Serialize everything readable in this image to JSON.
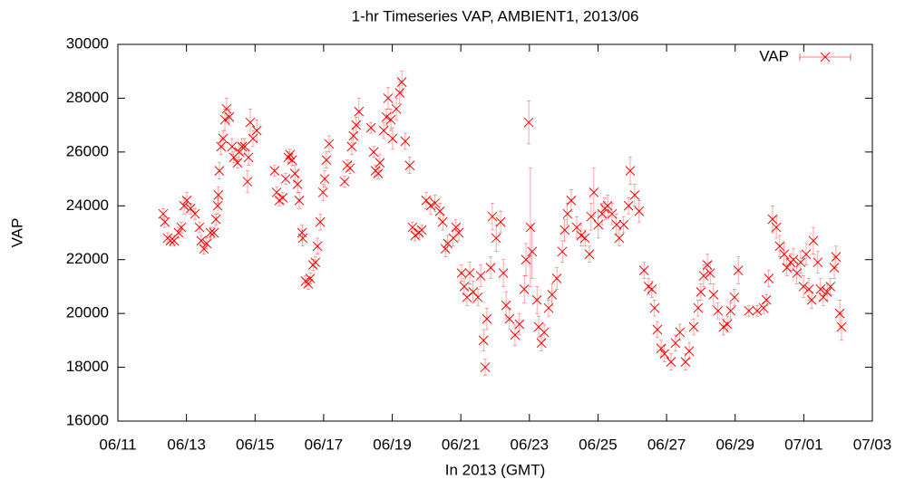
{
  "chart_data": {
    "type": "scatter",
    "title": "1-hr Timeseries VAP, AMBIENT1, 2013/06",
    "xlabel": "In 2013 (GMT)",
    "ylabel": "VAP",
    "xlim": [
      11,
      33
    ],
    "ylim": [
      16000,
      30000
    ],
    "xticks": [
      {
        "value": 11,
        "label": "06/11"
      },
      {
        "value": 13,
        "label": "06/13"
      },
      {
        "value": 15,
        "label": "06/15"
      },
      {
        "value": 17,
        "label": "06/17"
      },
      {
        "value": 19,
        "label": "06/19"
      },
      {
        "value": 21,
        "label": "06/21"
      },
      {
        "value": 23,
        "label": "06/23"
      },
      {
        "value": 25,
        "label": "06/25"
      },
      {
        "value": 27,
        "label": "06/27"
      },
      {
        "value": 29,
        "label": "06/29"
      },
      {
        "value": 31,
        "label": "07/01"
      },
      {
        "value": 33,
        "label": "07/03"
      }
    ],
    "yticks": [
      16000,
      18000,
      20000,
      22000,
      24000,
      26000,
      28000,
      30000
    ],
    "legend": "top-right",
    "x": [
      12.32,
      12.37,
      12.45,
      12.53,
      12.64,
      12.77,
      12.85,
      12.93,
      13.01,
      13.12,
      13.25,
      13.38,
      13.43,
      13.51,
      13.59,
      13.7,
      13.8,
      13.86,
      13.91,
      13.93,
      13.96,
      14.01,
      14.07,
      14.12,
      14.17,
      14.25,
      14.33,
      14.38,
      14.49,
      14.54,
      14.62,
      14.7,
      14.78,
      14.81,
      14.86,
      14.94,
      15.05,
      15.57,
      15.63,
      15.71,
      15.81,
      15.89,
      15.97,
      16.02,
      16.08,
      16.16,
      16.24,
      16.29,
      16.37,
      16.39,
      16.47,
      16.55,
      16.61,
      16.69,
      16.76,
      16.82,
      16.9,
      16.98,
      17.03,
      17.08,
      17.16,
      17.61,
      17.69,
      17.77,
      17.82,
      17.87,
      17.95,
      18.03,
      18.38,
      18.46,
      18.51,
      18.59,
      18.64,
      18.75,
      18.83,
      18.88,
      18.96,
      19.01,
      19.12,
      19.22,
      19.28,
      19.38,
      19.51,
      19.59,
      19.67,
      19.78,
      19.86,
      19.99,
      20.12,
      20.25,
      20.39,
      20.47,
      20.55,
      20.62,
      20.78,
      20.86,
      20.94,
      21.02,
      21.1,
      21.18,
      21.26,
      21.36,
      21.5,
      21.58,
      21.66,
      21.71,
      21.76,
      21.87,
      21.92,
      22.03,
      22.16,
      22.24,
      22.32,
      22.42,
      22.58,
      22.71,
      22.85,
      22.9,
      22.98,
      23.03,
      23.08,
      23.22,
      23.27,
      23.35,
      23.43,
      23.56,
      23.66,
      23.8,
      23.96,
      24.03,
      24.11,
      24.22,
      24.38,
      24.51,
      24.62,
      24.75,
      24.8,
      24.88,
      25.01,
      25.12,
      25.2,
      25.28,
      25.41,
      25.54,
      25.62,
      25.75,
      25.89,
      25.94,
      26.07,
      26.2,
      26.34,
      26.47,
      26.57,
      26.65,
      26.73,
      26.84,
      26.94,
      27.13,
      27.26,
      27.39,
      27.55,
      27.66,
      27.79,
      27.92,
      28.0,
      28.08,
      28.19,
      28.27,
      28.37,
      28.5,
      28.66,
      28.77,
      28.87,
      28.98,
      29.09,
      29.4,
      29.64,
      29.83,
      29.91,
      29.98,
      30.09,
      30.2,
      30.3,
      30.43,
      30.51,
      30.62,
      30.7,
      30.8,
      30.91,
      30.99,
      31.07,
      31.15,
      31.23,
      31.28,
      31.41,
      31.49,
      31.57,
      31.68,
      31.78,
      31.89,
      31.94,
      32.05,
      32.1
    ],
    "series": [
      {
        "name": "VAP",
        "color": "#ff0000",
        "values": [
          23700,
          23400,
          22800,
          22700,
          22700,
          23000,
          23200,
          24000,
          24200,
          23900,
          23700,
          23200,
          22700,
          22400,
          22600,
          23000,
          23000,
          23500,
          24000,
          24400,
          25300,
          26200,
          26500,
          27200,
          27600,
          27300,
          26200,
          25800,
          25600,
          26000,
          26200,
          26200,
          24900,
          25800,
          27100,
          26500,
          26800,
          25300,
          24500,
          24200,
          24300,
          25000,
          25800,
          25900,
          25700,
          25200,
          24800,
          24200,
          23000,
          22800,
          21200,
          21100,
          21300,
          21800,
          21900,
          22500,
          23400,
          24500,
          25000,
          25700,
          26300,
          24900,
          25500,
          25400,
          26200,
          26600,
          27000,
          27500,
          26900,
          26000,
          25300,
          25200,
          25600,
          26800,
          27300,
          28000,
          27200,
          26500,
          27600,
          28200,
          28600,
          26400,
          25500,
          23200,
          22900,
          23000,
          23100,
          24200,
          24000,
          24100,
          23800,
          23400,
          22400,
          22600,
          22800,
          23200,
          23000,
          21500,
          21000,
          20600,
          21500,
          20800,
          20600,
          21400,
          19000,
          18000,
          19800,
          21700,
          23600,
          22800,
          23400,
          21500,
          20300,
          19800,
          19200,
          19600,
          20900,
          22000,
          27100,
          23200,
          22300,
          20500,
          19500,
          18900,
          19300,
          20200,
          20700,
          21300,
          22300,
          23100,
          23700,
          24200,
          23200,
          22900,
          22800,
          22200,
          23600,
          24500,
          23300,
          23700,
          23900,
          24000,
          23700,
          23300,
          22800,
          23300,
          24000,
          25300,
          24400,
          23800,
          21600,
          21000,
          20900,
          20200,
          19400,
          18700,
          18500,
          18200,
          18900,
          19300,
          18200,
          18600,
          19500,
          20200,
          20800,
          21400,
          21800,
          21500,
          20700,
          20100,
          19500,
          19600,
          20100,
          20600,
          21600,
          20100,
          20100,
          20200,
          20500,
          21300,
          23500,
          23200,
          22500,
          22200,
          21700,
          21900,
          22000,
          21500,
          21900,
          21000,
          22200,
          20900,
          20500,
          22700,
          21900,
          20900,
          20600,
          20800,
          21000,
          21700,
          22100,
          20000,
          19500
        ],
        "errors": [
          200,
          200,
          200,
          200,
          200,
          200,
          200,
          300,
          300,
          200,
          200,
          200,
          200,
          200,
          200,
          200,
          200,
          200,
          300,
          300,
          300,
          300,
          300,
          400,
          400,
          300,
          300,
          200,
          200,
          300,
          300,
          300,
          400,
          300,
          500,
          300,
          400,
          200,
          200,
          200,
          200,
          200,
          200,
          200,
          200,
          300,
          300,
          300,
          300,
          300,
          200,
          200,
          200,
          200,
          200,
          300,
          300,
          300,
          300,
          300,
          300,
          200,
          200,
          200,
          300,
          300,
          300,
          500,
          200,
          200,
          200,
          200,
          300,
          300,
          300,
          400,
          400,
          400,
          400,
          400,
          400,
          300,
          300,
          200,
          200,
          200,
          200,
          300,
          300,
          300,
          300,
          300,
          300,
          300,
          300,
          300,
          300,
          300,
          300,
          300,
          400,
          400,
          300,
          400,
          400,
          300,
          400,
          400,
          500,
          500,
          400,
          500,
          500,
          400,
          400,
          400,
          500,
          600,
          800,
          2200,
          1000,
          500,
          400,
          300,
          300,
          300,
          400,
          400,
          400,
          400,
          400,
          400,
          400,
          400,
          300,
          300,
          500,
          900,
          500,
          400,
          400,
          400,
          400,
          400,
          300,
          300,
          300,
          500,
          400,
          400,
          300,
          300,
          300,
          300,
          300,
          300,
          300,
          300,
          300,
          300,
          300,
          300,
          300,
          300,
          300,
          400,
          400,
          400,
          400,
          300,
          300,
          300,
          300,
          300,
          500,
          200,
          200,
          200,
          200,
          300,
          500,
          400,
          400,
          400,
          300,
          300,
          400,
          400,
          400,
          400,
          400,
          400,
          300,
          500,
          400,
          400,
          300,
          300,
          300,
          400,
          400,
          500,
          500
        ]
      }
    ]
  }
}
